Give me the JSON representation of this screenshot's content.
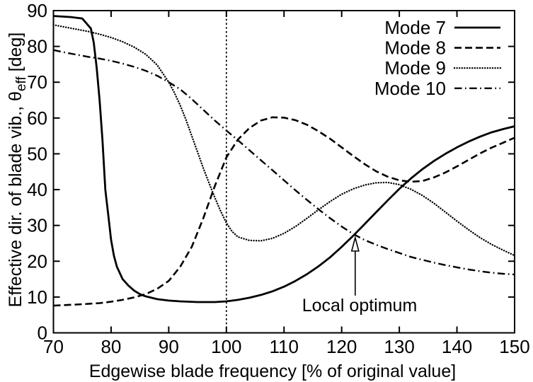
{
  "figure": {
    "background": "#ffffff",
    "line_color": "#000000"
  },
  "chart_data": {
    "type": "line",
    "title": "",
    "xlabel": "Edgewise blade frequency [% of original value]",
    "ylabel": {
      "prefix": "Effective dir. of blade vib., θ",
      "subscript": "eff",
      "suffix": " [deg]"
    },
    "xlim": [
      70,
      150
    ],
    "ylim": [
      0,
      90
    ],
    "xticks": [
      70,
      80,
      90,
      100,
      110,
      120,
      130,
      140,
      150
    ],
    "yticks": [
      0,
      10,
      20,
      30,
      40,
      50,
      60,
      70,
      80,
      90
    ],
    "grid": false,
    "legend_position": "top-right-inside",
    "reference_line": {
      "axis": "x",
      "value": 100,
      "style": "dotted"
    },
    "annotation": {
      "text": "Local optimum",
      "arrow_x": 122.35,
      "arrow_tail_y": 10.4,
      "arrow_tip_y": 26.6
    },
    "series": [
      {
        "name": "Mode 7",
        "style": "solid",
        "points": [
          [
            70,
            88.5
          ],
          [
            73,
            88.2
          ],
          [
            75,
            87.8
          ],
          [
            76.5,
            85
          ],
          [
            77,
            81
          ],
          [
            77.5,
            74
          ],
          [
            78,
            65
          ],
          [
            78.5,
            54
          ],
          [
            79,
            40
          ],
          [
            79.5,
            33
          ],
          [
            80,
            26
          ],
          [
            80.5,
            21.5
          ],
          [
            81,
            18.5
          ],
          [
            82,
            15
          ],
          [
            83,
            13.2
          ],
          [
            84,
            11.8
          ],
          [
            85,
            10.8
          ],
          [
            86,
            10.2
          ],
          [
            88,
            9.4
          ],
          [
            90,
            9
          ],
          [
            92,
            8.8
          ],
          [
            95,
            8.6
          ],
          [
            98,
            8.6
          ],
          [
            100,
            8.8
          ],
          [
            102,
            9.2
          ],
          [
            104,
            9.8
          ],
          [
            106,
            10.6
          ],
          [
            108,
            11.6
          ],
          [
            110,
            12.9
          ],
          [
            112,
            14.5
          ],
          [
            114,
            16.4
          ],
          [
            116,
            18.6
          ],
          [
            118,
            21.1
          ],
          [
            120,
            24
          ],
          [
            122,
            27.1
          ],
          [
            124,
            30.4
          ],
          [
            126,
            33.7
          ],
          [
            128,
            37
          ],
          [
            130,
            40.2
          ],
          [
            132,
            43.1
          ],
          [
            134,
            45.7
          ],
          [
            136,
            48
          ],
          [
            138,
            50
          ],
          [
            140,
            51.8
          ],
          [
            142,
            53.4
          ],
          [
            144,
            54.8
          ],
          [
            146,
            56
          ],
          [
            148,
            56.9
          ],
          [
            150,
            57.7
          ]
        ]
      },
      {
        "name": "Mode 8",
        "style": "dashed",
        "points": [
          [
            70,
            7.6
          ],
          [
            74,
            7.9
          ],
          [
            78,
            8.3
          ],
          [
            80,
            8.7
          ],
          [
            82,
            9.2
          ],
          [
            84,
            9.9
          ],
          [
            86,
            10.8
          ],
          [
            88,
            12.3
          ],
          [
            90,
            14.5
          ],
          [
            92,
            18.5
          ],
          [
            94,
            24
          ],
          [
            96,
            32
          ],
          [
            98,
            41
          ],
          [
            100,
            49
          ],
          [
            102,
            54
          ],
          [
            104,
            57.2
          ],
          [
            106,
            59.3
          ],
          [
            108,
            60.2
          ],
          [
            110,
            60.1
          ],
          [
            112,
            59.4
          ],
          [
            114,
            58.1
          ],
          [
            116,
            56.3
          ],
          [
            118,
            54.2
          ],
          [
            120,
            51.8
          ],
          [
            122,
            49.4
          ],
          [
            124,
            47.1
          ],
          [
            126,
            45.1
          ],
          [
            128,
            43.6
          ],
          [
            130,
            42.6
          ],
          [
            132,
            42.2
          ],
          [
            134,
            42.4
          ],
          [
            136,
            43.4
          ],
          [
            138,
            44.8
          ],
          [
            140,
            46.5
          ],
          [
            142,
            48.3
          ],
          [
            144,
            50.1
          ],
          [
            146,
            51.7
          ],
          [
            148,
            53.1
          ],
          [
            150,
            54.5
          ]
        ]
      },
      {
        "name": "Mode 9",
        "style": "dotted",
        "points": [
          [
            70,
            86
          ],
          [
            73,
            85.1
          ],
          [
            76,
            84.2
          ],
          [
            78,
            83.4
          ],
          [
            80,
            82.5
          ],
          [
            82,
            81.3
          ],
          [
            84,
            79.8
          ],
          [
            86,
            77.8
          ],
          [
            88,
            74.8
          ],
          [
            90,
            70
          ],
          [
            91,
            67
          ],
          [
            92,
            63.5
          ],
          [
            93,
            59.5
          ],
          [
            94,
            55
          ],
          [
            95,
            50.5
          ],
          [
            96,
            46
          ],
          [
            97,
            41.8
          ],
          [
            98,
            37.8
          ],
          [
            99,
            34
          ],
          [
            100,
            30.7
          ],
          [
            101,
            28.3
          ],
          [
            102,
            26.8
          ],
          [
            104,
            25.8
          ],
          [
            106,
            25.7
          ],
          [
            108,
            26.4
          ],
          [
            110,
            27.8
          ],
          [
            112,
            29.7
          ],
          [
            114,
            32
          ],
          [
            116,
            34.4
          ],
          [
            118,
            36.7
          ],
          [
            120,
            38.7
          ],
          [
            122,
            40.2
          ],
          [
            124,
            41.3
          ],
          [
            126,
            41.9
          ],
          [
            128,
            42
          ],
          [
            130,
            41.4
          ],
          [
            132,
            40.1
          ],
          [
            134,
            38.4
          ],
          [
            136,
            36.2
          ],
          [
            138,
            33.7
          ],
          [
            140,
            31.2
          ],
          [
            142,
            28.8
          ],
          [
            144,
            26.6
          ],
          [
            146,
            24.7
          ],
          [
            148,
            23.1
          ],
          [
            150,
            21.6
          ]
        ]
      },
      {
        "name": "Mode 10",
        "style": "dashdot",
        "points": [
          [
            70,
            79
          ],
          [
            72,
            78.3
          ],
          [
            74,
            77.7
          ],
          [
            76,
            77.1
          ],
          [
            78,
            76.6
          ],
          [
            80,
            76
          ],
          [
            82,
            75.2
          ],
          [
            84,
            74.3
          ],
          [
            86,
            73.2
          ],
          [
            88,
            71.8
          ],
          [
            90,
            70
          ],
          [
            92,
            68
          ],
          [
            94,
            65.3
          ],
          [
            96,
            62.3
          ],
          [
            98,
            59.3
          ],
          [
            100,
            56.5
          ],
          [
            102,
            53.8
          ],
          [
            104,
            51
          ],
          [
            106,
            48.2
          ],
          [
            108,
            45.4
          ],
          [
            110,
            42.6
          ],
          [
            112,
            39.8
          ],
          [
            114,
            37.1
          ],
          [
            116,
            34.5
          ],
          [
            118,
            32
          ],
          [
            120,
            29.7
          ],
          [
            122,
            27.6
          ],
          [
            124,
            25.9
          ],
          [
            126,
            24.6
          ],
          [
            128,
            23.4
          ],
          [
            130,
            22.3
          ],
          [
            132,
            21.2
          ],
          [
            134,
            20.4
          ],
          [
            136,
            19.6
          ],
          [
            138,
            18.9
          ],
          [
            140,
            18.3
          ],
          [
            142,
            17.7
          ],
          [
            144,
            17.2
          ],
          [
            146,
            16.8
          ],
          [
            148,
            16.5
          ],
          [
            150,
            16.3
          ]
        ]
      }
    ]
  }
}
